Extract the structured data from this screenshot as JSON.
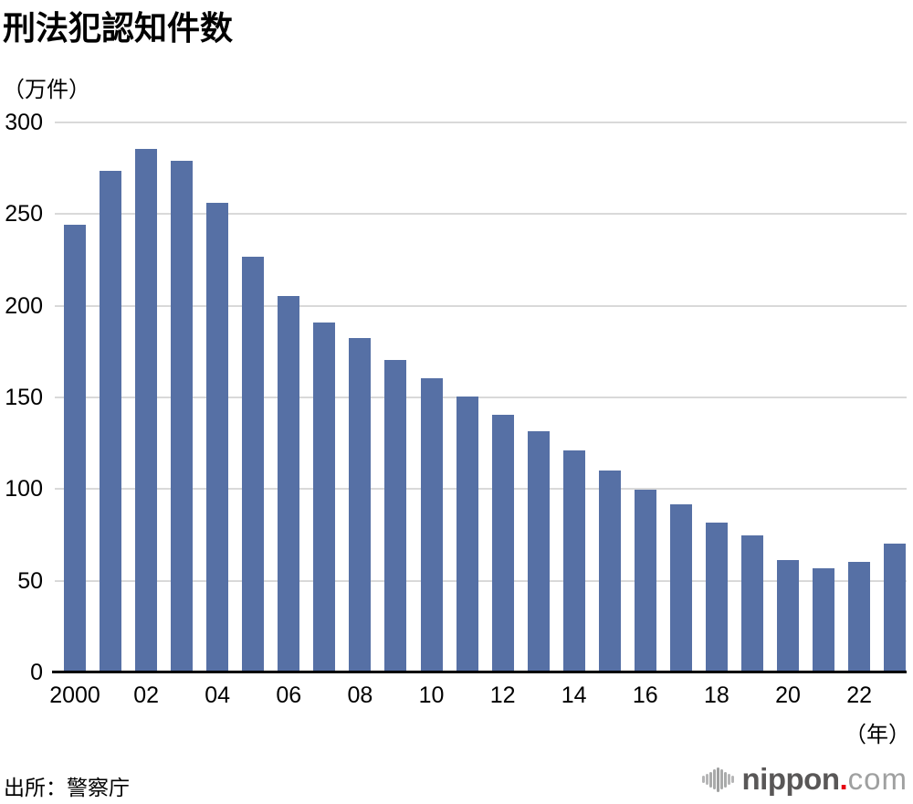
{
  "chart_data": {
    "type": "bar",
    "title": "刑法犯認知件数",
    "ylabel": "（万件）",
    "x_unit": "（年）",
    "xlabel": "",
    "ylim": [
      0,
      300
    ],
    "y_ticks": [
      0,
      50,
      100,
      150,
      200,
      250,
      300
    ],
    "grid": true,
    "legend": "none",
    "x": [
      2000,
      2001,
      2002,
      2003,
      2004,
      2005,
      2006,
      2007,
      2008,
      2009,
      2010,
      2011,
      2012,
      2013,
      2014,
      2015,
      2016,
      2017,
      2018,
      2019,
      2020,
      2021,
      2022,
      2023
    ],
    "x_tick_labels": [
      "2000",
      "02",
      "04",
      "06",
      "08",
      "10",
      "12",
      "14",
      "16",
      "18",
      "20",
      "22"
    ],
    "values": [
      244.3,
      273.5,
      285.4,
      279.0,
      256.3,
      226.9,
      205.1,
      190.9,
      182.6,
      170.3,
      160.4,
      150.3,
      140.3,
      131.4,
      121.2,
      109.9,
      99.6,
      91.5,
      81.7,
      74.9,
      61.4,
      56.8,
      60.1,
      70.3
    ]
  },
  "footer": {
    "source": "出所：警察庁",
    "logo": {
      "brand": "nippon",
      "dot": ".",
      "tld": "com"
    }
  },
  "colors": {
    "bar": "#5670A5",
    "gridline": "#d9d9d9",
    "axis": "#000000",
    "logo_dark": "#595757",
    "logo_light": "#9fa0a0",
    "logo_red": "#e60012",
    "logo_icon_gray": "#b5b5b6"
  }
}
